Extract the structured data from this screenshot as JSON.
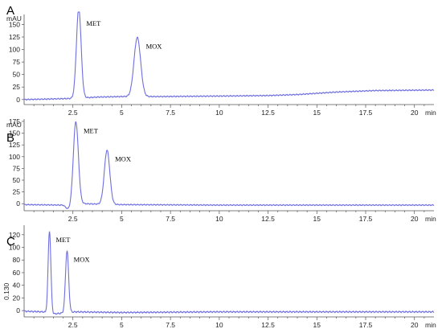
{
  "colors": {
    "trace": "#6f6fe0",
    "axis": "#555555"
  },
  "chart_data": [
    {
      "type": "line",
      "panel_label": "A",
      "ylabel": "mAU",
      "x_unit": "min",
      "xlim": [
        0,
        21
      ],
      "ylim": [
        -10,
        170
      ],
      "x_ticks": [
        2.5,
        5,
        7.5,
        10,
        12.5,
        15,
        17.5,
        20
      ],
      "x_tick_labels": [
        "2.5",
        "5",
        "7.5",
        "10",
        "12.5",
        "15",
        "17.5",
        "20"
      ],
      "y_ticks": [
        0,
        25,
        50,
        75,
        100,
        125,
        150
      ],
      "y_tick_labels": [
        "0",
        "25",
        "50",
        "75",
        "100",
        "125",
        "150"
      ],
      "baseline": [
        [
          0,
          0
        ],
        [
          2.3,
          2
        ],
        [
          3.8,
          5
        ],
        [
          5,
          6
        ],
        [
          7,
          6
        ],
        [
          10,
          7
        ],
        [
          12.5,
          8
        ],
        [
          14,
          10
        ],
        [
          16,
          15
        ],
        [
          18,
          18
        ],
        [
          21,
          19
        ]
      ],
      "peaks": [
        {
          "name": "MET",
          "rt": 2.8,
          "height": 180,
          "width": 0.12
        },
        {
          "name": "MOX",
          "rt": 5.8,
          "height": 118,
          "width": 0.17
        }
      ]
    },
    {
      "type": "line",
      "panel_label": "B",
      "ylabel": "mAU",
      "x_unit": "min",
      "xlim": [
        0,
        21
      ],
      "ylim": [
        -15,
        180
      ],
      "x_ticks": [
        2.5,
        5,
        7.5,
        10,
        12.5,
        15,
        17.5,
        20
      ],
      "x_tick_labels": [
        "2.5",
        "5",
        "7.5",
        "10",
        "12.5",
        "15",
        "17.5",
        "20"
      ],
      "y_ticks": [
        0,
        25,
        50,
        75,
        100,
        125,
        150,
        175
      ],
      "y_tick_labels": [
        "0",
        "25",
        "50",
        "75",
        "100",
        "125",
        "150",
        "175"
      ],
      "baseline": [
        [
          0,
          -2
        ],
        [
          2.0,
          -3
        ],
        [
          2.25,
          -12
        ],
        [
          3.0,
          0
        ],
        [
          5,
          -2
        ],
        [
          10,
          -3
        ],
        [
          15,
          -3
        ],
        [
          21,
          -3
        ]
      ],
      "peaks": [
        {
          "name": "MET",
          "rt": 2.65,
          "height": 180,
          "width": 0.13
        },
        {
          "name": "MOX",
          "rt": 4.25,
          "height": 115,
          "width": 0.14
        }
      ]
    },
    {
      "type": "line",
      "panel_label": "C",
      "ylabel": "0.130",
      "x_unit": "min",
      "xlim": [
        0,
        21
      ],
      "ylim": [
        -10,
        135
      ],
      "x_ticks": [
        2.5,
        5,
        7.5,
        10,
        12.5,
        15,
        17.5,
        20
      ],
      "x_tick_labels": [
        "2.5",
        "5",
        "7.5",
        "10",
        "12.5",
        "15",
        "17.5",
        "20"
      ],
      "y_ticks": [
        0,
        20,
        40,
        60,
        80,
        100,
        120
      ],
      "y_tick_labels": [
        "0",
        "20",
        "40",
        "60",
        "80",
        "100",
        "120"
      ],
      "baseline": [
        [
          0,
          -1
        ],
        [
          1.0,
          -2
        ],
        [
          1.3,
          -6
        ],
        [
          2.6,
          -2
        ],
        [
          5,
          -3
        ],
        [
          10,
          -2
        ],
        [
          15,
          -2
        ],
        [
          21,
          -2
        ]
      ],
      "peaks": [
        {
          "name": "MET",
          "rt": 1.3,
          "height": 132,
          "width": 0.07
        },
        {
          "name": "MOX",
          "rt": 2.2,
          "height": 98,
          "width": 0.08
        }
      ]
    }
  ]
}
